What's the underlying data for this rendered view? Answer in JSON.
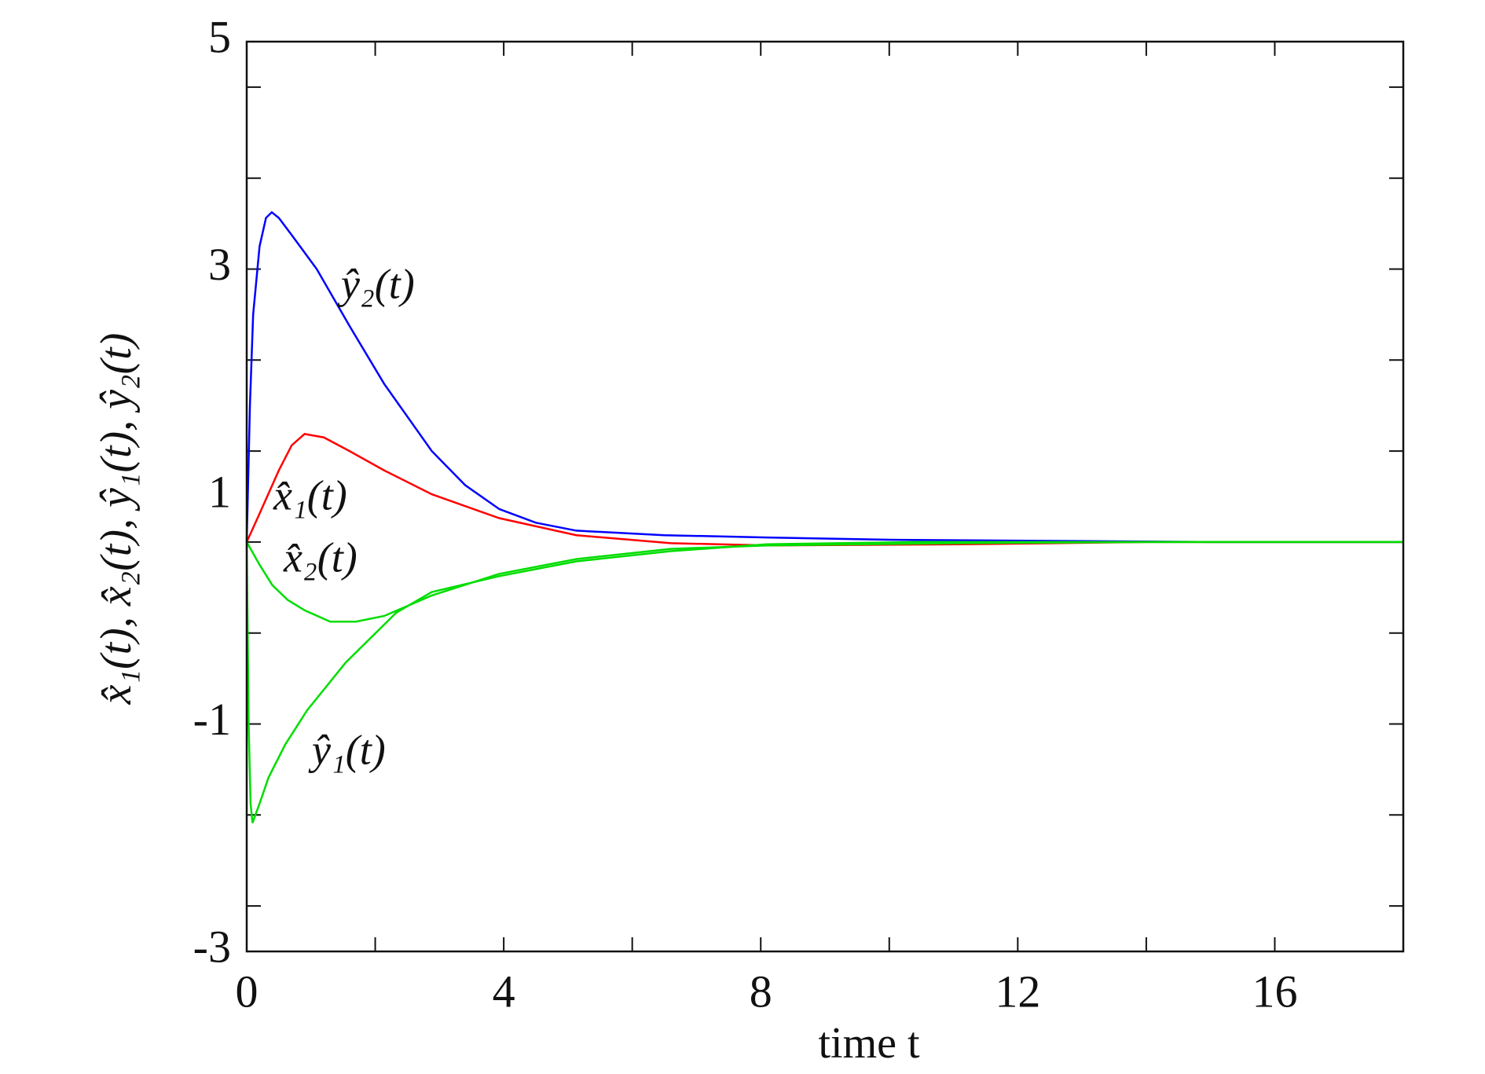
{
  "chart_data": {
    "type": "line",
    "xlabel": "time t",
    "ylabel": "x̂₁(t), x̂₂(t), ŷ₁(t), ŷ₂(t)",
    "xlim": [
      0,
      18
    ],
    "ylim": [
      -3,
      5
    ],
    "xticks": [
      0,
      4,
      8,
      12,
      16
    ],
    "x_minor_ticks": [
      2,
      6,
      10,
      14
    ],
    "yticks": [
      -3,
      -1,
      1,
      3,
      5
    ],
    "y_tick_marks": [
      4.6,
      3.8,
      3.0,
      2.2,
      1.4,
      0.6,
      -0.2,
      -1.0,
      -1.8,
      -2.6
    ],
    "grid": false,
    "series": [
      {
        "name": "ŷ₂(t)",
        "color": "#0000ff",
        "x": [
          0,
          0.05,
          0.1,
          0.2,
          0.3,
          0.39,
          0.5,
          0.7,
          1.09,
          1.6,
          2.14,
          2.88,
          3.4,
          3.93,
          4.5,
          5.13,
          6.5,
          8.1,
          10,
          12.6,
          15,
          18
        ],
        "values": [
          0.6,
          1.8,
          2.6,
          3.2,
          3.45,
          3.5,
          3.45,
          3.3,
          3.0,
          2.5,
          1.99,
          1.4,
          1.1,
          0.89,
          0.77,
          0.7,
          0.66,
          0.64,
          0.62,
          0.61,
          0.6,
          0.6
        ]
      },
      {
        "name": "x̂₁(t)",
        "color": "#ff0000",
        "x": [
          0,
          0.2,
          0.5,
          0.7,
          0.9,
          1.2,
          1.6,
          2.14,
          2.88,
          3.93,
          5.13,
          6.6,
          8.1,
          11.1,
          14,
          18
        ],
        "values": [
          0.6,
          0.85,
          1.23,
          1.45,
          1.55,
          1.52,
          1.4,
          1.23,
          1.02,
          0.81,
          0.66,
          0.59,
          0.57,
          0.58,
          0.6,
          0.6
        ]
      },
      {
        "name": "x̂₂(t)",
        "color": "#00dd00",
        "x": [
          0,
          0.2,
          0.4,
          0.64,
          0.9,
          1.3,
          1.7,
          2.14,
          2.88,
          3.93,
          5.13,
          6.6,
          8.1,
          11.1,
          14,
          18
        ],
        "values": [
          0.6,
          0.4,
          0.22,
          0.09,
          0.0,
          -0.1,
          -0.1,
          -0.05,
          0.13,
          0.32,
          0.45,
          0.54,
          0.57,
          0.59,
          0.6,
          0.6
        ]
      },
      {
        "name": "ŷ₁(t)",
        "color": "#00dd00",
        "x": [
          0,
          0.03,
          0.06,
          0.09,
          0.2,
          0.34,
          0.6,
          0.94,
          1.54,
          2.33,
          2.88,
          3.93,
          5.13,
          6.6,
          8.1,
          10.4,
          14,
          18
        ],
        "values": [
          0.6,
          -1.0,
          -1.7,
          -1.87,
          -1.7,
          -1.47,
          -1.18,
          -0.88,
          -0.46,
          -0.02,
          0.16,
          0.3,
          0.43,
          0.52,
          0.58,
          0.6,
          0.6,
          0.6
        ]
      }
    ]
  }
}
